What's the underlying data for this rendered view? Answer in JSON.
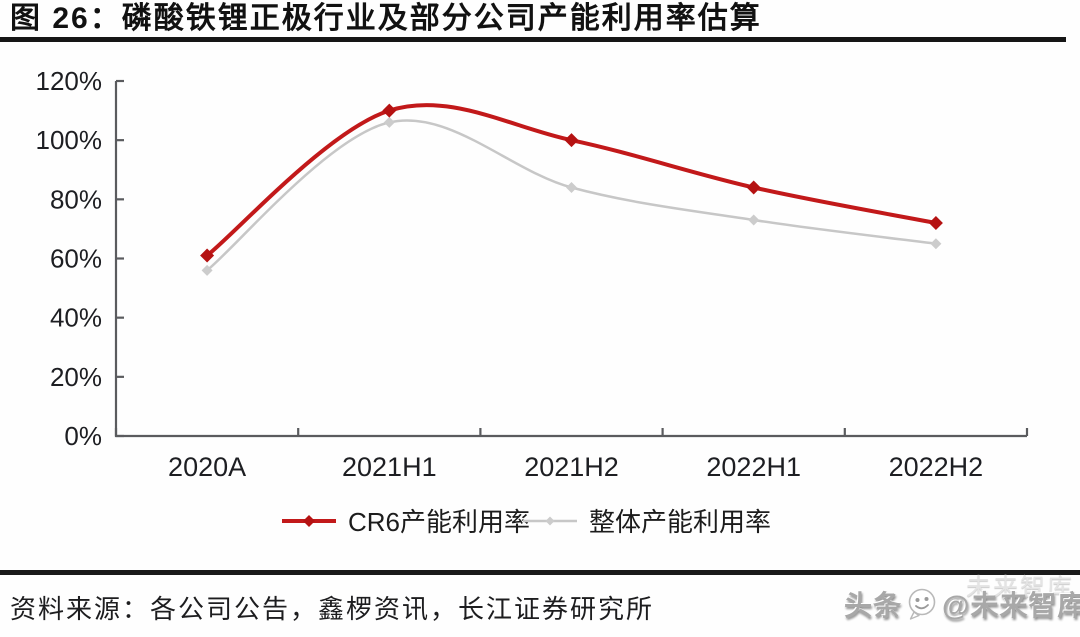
{
  "title": "图 26：磷酸铁锂正极行业及部分公司产能利用率估算",
  "source_note": "资料来源：各公司公告，鑫椤资讯，长江证券研究所",
  "watermark": {
    "prefix": "头条",
    "handle": "@未来智库",
    "ghost": "未来智库",
    "icon": "chat-bubble-face-icon"
  },
  "colors": {
    "cr6_red": "#c2191a",
    "overall_gray": "#c7c7c7",
    "axis": "#5a5b5e",
    "rule_bar": "#161616",
    "label_text": "#1d1e22"
  },
  "chart_data": {
    "type": "line",
    "title": "磷酸铁锂正极行业及部分公司产能利用率估算",
    "categories": [
      "2020A",
      "2021H1",
      "2021H2",
      "2022H1",
      "2022H2"
    ],
    "series": [
      {
        "name": "CR6产能利用率",
        "values": [
          61,
          110,
          100,
          84,
          72
        ],
        "color": "#c2191a",
        "marker_color": "#b51212",
        "marker": "diamond",
        "stroke_width": 4,
        "marker_size": 7
      },
      {
        "name": "整体产能利用率",
        "values": [
          56,
          106,
          84,
          73,
          65
        ],
        "color": "#c7c7c7",
        "marker_color": "#cccccc",
        "marker": "diamond",
        "stroke_width": 2.5,
        "marker_size": 5.5
      }
    ],
    "ylim": [
      0,
      120
    ],
    "yticks": [
      0,
      20,
      40,
      60,
      80,
      100,
      120
    ],
    "ytick_labels": [
      "0%",
      "20%",
      "40%",
      "60%",
      "80%",
      "100%",
      "120%"
    ],
    "smooth": true,
    "grid": false,
    "legend_position": "bottom"
  }
}
